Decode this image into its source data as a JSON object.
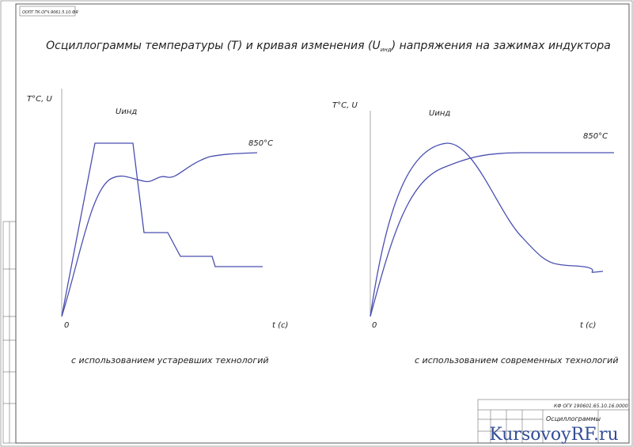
{
  "stamp": "ООПГ.ТК.ОГЧ.9061.5.10.ФЯ",
  "title": {
    "before": "Осциллограммы температуры (T) и кривая изменения (U",
    "sub": "инд",
    "after": ") напряжения на зажимах индуктора"
  },
  "left": {
    "axis_y": "T°C, U",
    "origin": "0",
    "axis_x": "t (c)",
    "curve_u": "Uинд",
    "curve_t": "850°C",
    "caption": "с использованием устаревших технологий"
  },
  "right": {
    "axis_y": "T°C, U",
    "origin": "0",
    "axis_x": "t (c)",
    "curve_u": "Uинд",
    "curve_t": "850°C",
    "caption": "с использованием современных технологий"
  },
  "title_block": {
    "code": "КФ ОГУ 190601.65.10.16.0000",
    "name": "Осциллограммы"
  },
  "watermark": "KursovoyRF.ru"
}
